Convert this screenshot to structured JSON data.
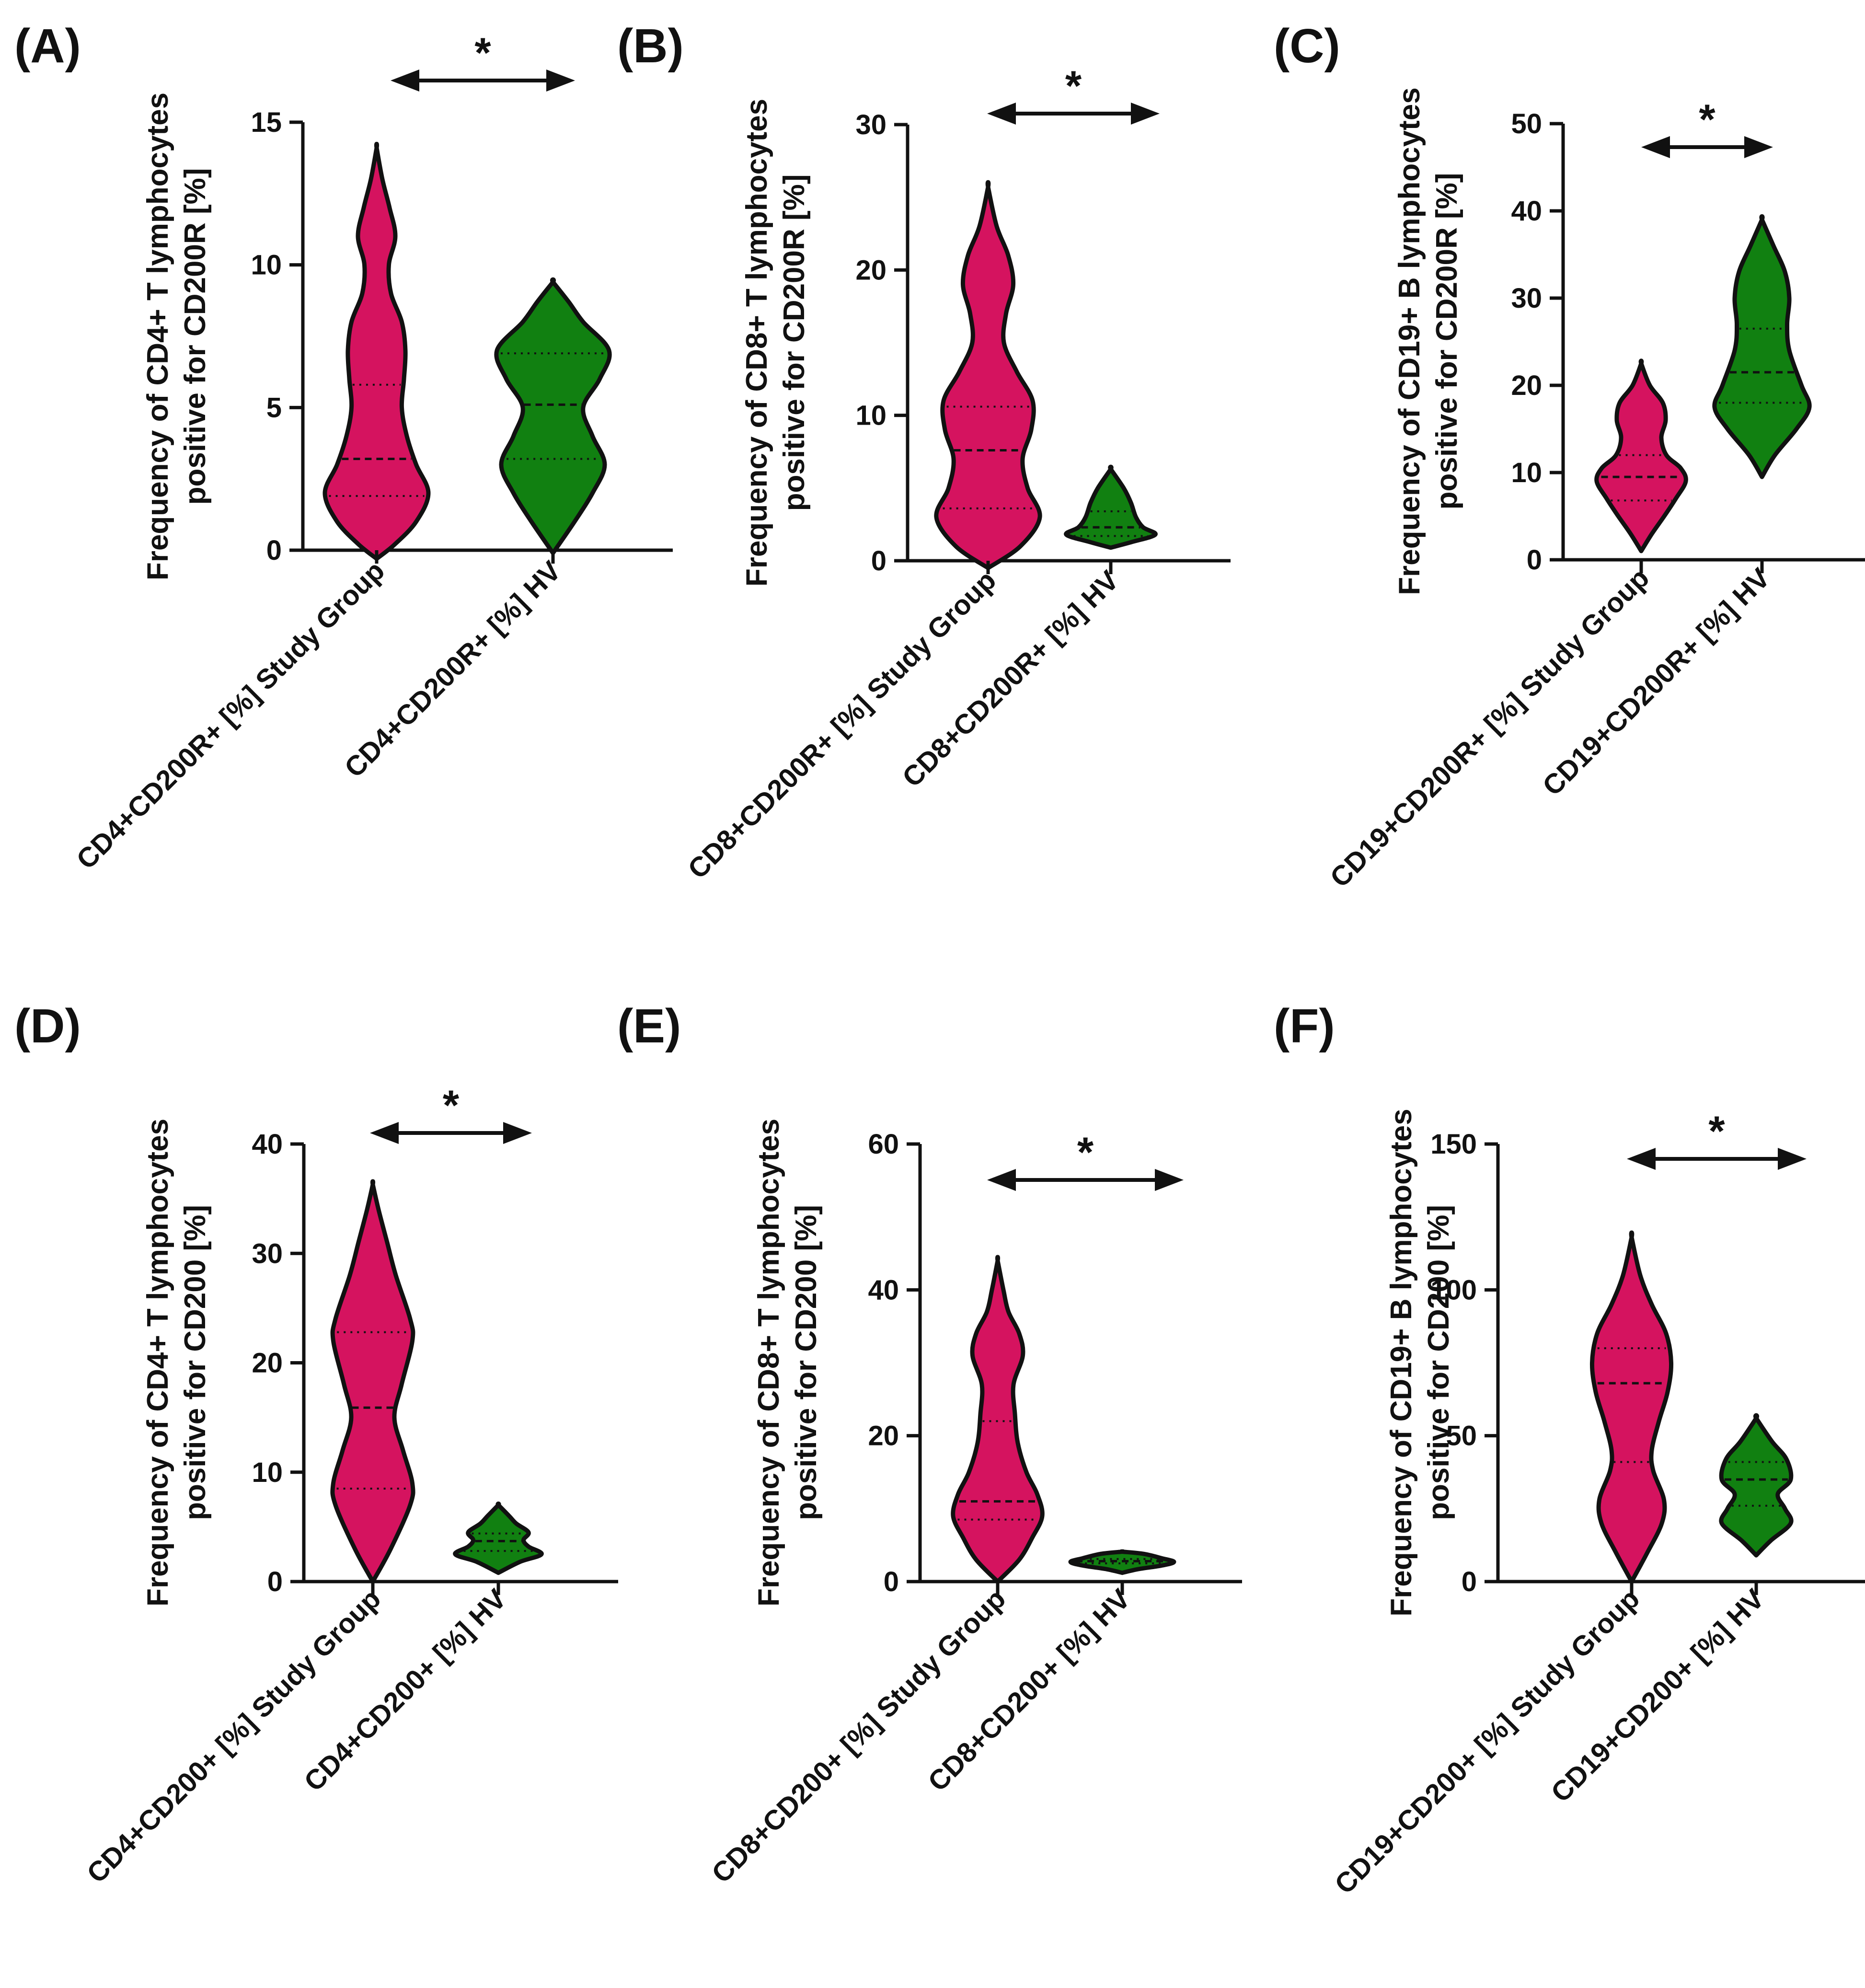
{
  "colors": {
    "study_group": "#d5135f",
    "hv": "#118011",
    "outline": "#111111"
  },
  "chart_data": [
    {
      "panel": "(A)",
      "type": "violin",
      "ylabel_lines": [
        "Frequency of CD4+ T lymphocytes",
        "positive for CD200R [%]"
      ],
      "yticks": [
        0,
        5,
        10,
        15
      ],
      "ylim": [
        0,
        15
      ],
      "significance": "*",
      "groups": [
        {
          "category": "CD4+CD200R+ [%] Study Group",
          "median": 3.2,
          "q1": 1.9,
          "q3": 5.8,
          "profile": [
            [
              -0.3,
              0
            ],
            [
              0.2,
              0.25
            ],
            [
              1.0,
              0.55
            ],
            [
              2.0,
              0.72
            ],
            [
              3.0,
              0.55
            ],
            [
              4.0,
              0.42
            ],
            [
              5.0,
              0.35
            ],
            [
              6.0,
              0.38
            ],
            [
              7.0,
              0.4
            ],
            [
              8.0,
              0.35
            ],
            [
              9.0,
              0.2
            ],
            [
              10.0,
              0.17
            ],
            [
              11.0,
              0.26
            ],
            [
              12.0,
              0.18
            ],
            [
              13.0,
              0.08
            ],
            [
              14.1,
              0
            ]
          ]
        },
        {
          "category": "CD4+CD200R+ [%] HV",
          "median": 5.1,
          "q1": 3.2,
          "q3": 6.9,
          "profile": [
            [
              -0.1,
              0
            ],
            [
              1.0,
              0.3
            ],
            [
              2.0,
              0.55
            ],
            [
              3.0,
              0.72
            ],
            [
              4.0,
              0.55
            ],
            [
              5.0,
              0.42
            ],
            [
              6.0,
              0.65
            ],
            [
              7.0,
              0.78
            ],
            [
              8.0,
              0.42
            ],
            [
              8.7,
              0.22
            ],
            [
              9.4,
              0
            ]
          ]
        }
      ]
    },
    {
      "panel": "(B)",
      "type": "violin",
      "ylabel_lines": [
        "Frequency of CD8+ T lymphocytes",
        "positive for CD200R [%]"
      ],
      "yticks": [
        0,
        10,
        20,
        30
      ],
      "ylim": [
        0,
        30
      ],
      "significance": "*",
      "groups": [
        {
          "category": "CD8+CD200R+ [%] Study Group",
          "median": 7.6,
          "q1": 3.6,
          "q3": 10.6,
          "profile": [
            [
              -0.5,
              0
            ],
            [
              1.0,
              0.45
            ],
            [
              3.0,
              0.72
            ],
            [
              5.0,
              0.55
            ],
            [
              7.0,
              0.48
            ],
            [
              9.0,
              0.6
            ],
            [
              11.0,
              0.62
            ],
            [
              13.0,
              0.4
            ],
            [
              15.0,
              0.22
            ],
            [
              17.0,
              0.25
            ],
            [
              19.0,
              0.35
            ],
            [
              21.0,
              0.28
            ],
            [
              23.0,
              0.12
            ],
            [
              25.7,
              0
            ]
          ]
        },
        {
          "category": "CD8+CD200R+ [%] HV",
          "median": 2.3,
          "q1": 1.7,
          "q3": 3.4,
          "profile": [
            [
              0.9,
              0
            ],
            [
              1.3,
              0.3
            ],
            [
              1.8,
              0.62
            ],
            [
              2.3,
              0.45
            ],
            [
              3.0,
              0.35
            ],
            [
              4.0,
              0.28
            ],
            [
              5.0,
              0.18
            ],
            [
              6.3,
              0
            ]
          ]
        }
      ]
    },
    {
      "panel": "(C)",
      "type": "violin",
      "ylabel_lines": [
        "Frequency of CD19+ B lymphocytes",
        "positive for CD200R [%]"
      ],
      "yticks": [
        0,
        10,
        20,
        30,
        40,
        50
      ],
      "ylim": [
        0,
        50
      ],
      "significance": "*",
      "groups": [
        {
          "category": "CD19+CD200R+ [%] Study Group",
          "median": 9.5,
          "q1": 6.8,
          "q3": 12.0,
          "profile": [
            [
              1.0,
              0
            ],
            [
              3.0,
              0.15
            ],
            [
              5.0,
              0.32
            ],
            [
              7.0,
              0.48
            ],
            [
              9.0,
              0.62
            ],
            [
              10.5,
              0.55
            ],
            [
              12.0,
              0.35
            ],
            [
              14.0,
              0.28
            ],
            [
              16.0,
              0.34
            ],
            [
              18.0,
              0.3
            ],
            [
              20.0,
              0.12
            ],
            [
              22.5,
              0
            ]
          ]
        },
        {
          "category": "CD19+CD200R+ [%] HV",
          "median": 21.5,
          "q1": 18.0,
          "q3": 26.5,
          "profile": [
            [
              9.5,
              0
            ],
            [
              12.0,
              0.18
            ],
            [
              15.0,
              0.48
            ],
            [
              17.5,
              0.66
            ],
            [
              20.0,
              0.55
            ],
            [
              24.0,
              0.38
            ],
            [
              27.0,
              0.35
            ],
            [
              30.0,
              0.38
            ],
            [
              33.0,
              0.32
            ],
            [
              36.0,
              0.16
            ],
            [
              39.0,
              0
            ]
          ]
        }
      ]
    },
    {
      "panel": "(D)",
      "type": "violin",
      "ylabel_lines": [
        "Frequency of CD4+ T lymphocytes",
        "positive for CD200 [%]"
      ],
      "yticks": [
        0,
        10,
        20,
        30,
        40
      ],
      "ylim": [
        0,
        40
      ],
      "significance": "*",
      "groups": [
        {
          "category": "CD4+CD200+ [%] Study Group",
          "median": 15.9,
          "q1": 8.5,
          "q3": 22.8,
          "profile": [
            [
              0.0,
              0
            ],
            [
              3.0,
              0.25
            ],
            [
              7.0,
              0.52
            ],
            [
              9.0,
              0.55
            ],
            [
              12.0,
              0.42
            ],
            [
              15.0,
              0.3
            ],
            [
              18.0,
              0.4
            ],
            [
              22.0,
              0.55
            ],
            [
              24.0,
              0.52
            ],
            [
              28.0,
              0.32
            ],
            [
              31.0,
              0.2
            ],
            [
              34.0,
              0.08
            ],
            [
              36.3,
              0
            ]
          ]
        },
        {
          "category": "CD4+CD200+ [%] HV",
          "median": 3.7,
          "q1": 2.8,
          "q3": 4.4,
          "profile": [
            [
              0.8,
              0
            ],
            [
              1.8,
              0.3
            ],
            [
              2.5,
              0.6
            ],
            [
              3.2,
              0.42
            ],
            [
              3.8,
              0.35
            ],
            [
              4.5,
              0.42
            ],
            [
              5.3,
              0.25
            ],
            [
              6.0,
              0.15
            ],
            [
              7.0,
              0
            ]
          ]
        }
      ]
    },
    {
      "panel": "(E)",
      "type": "violin",
      "ylabel_lines": [
        "Frequency of CD8+ T lymphocytes",
        "positive for CD200 [%]"
      ],
      "yticks": [
        0,
        20,
        40,
        60
      ],
      "ylim": [
        0,
        60
      ],
      "significance": "*",
      "groups": [
        {
          "category": "CD8+CD200+ [%] Study Group",
          "median": 11.0,
          "q1": 8.5,
          "q3": 22.0,
          "profile": [
            [
              0.0,
              0
            ],
            [
              3.0,
              0.3
            ],
            [
              6.0,
              0.48
            ],
            [
              9.0,
              0.62
            ],
            [
              12.0,
              0.55
            ],
            [
              15.0,
              0.4
            ],
            [
              19.0,
              0.28
            ],
            [
              23.0,
              0.24
            ],
            [
              27.0,
              0.22
            ],
            [
              31.0,
              0.35
            ],
            [
              34.0,
              0.3
            ],
            [
              37.0,
              0.15
            ],
            [
              40.0,
              0.08
            ],
            [
              44.0,
              0
            ]
          ]
        },
        {
          "category": "CD8+CD200+ [%] HV",
          "median": 2.8,
          "q1": 2.5,
          "q3": 3.1,
          "profile": [
            [
              1.2,
              0
            ],
            [
              1.7,
              0.22
            ],
            [
              2.2,
              0.55
            ],
            [
              2.7,
              0.72
            ],
            [
              3.2,
              0.55
            ],
            [
              3.8,
              0.3
            ],
            [
              4.1,
              0
            ]
          ]
        }
      ]
    },
    {
      "panel": "(F)",
      "type": "violin",
      "ylabel_lines": [
        "Frequency of CD19+ B lymphocytes",
        "positive for CD200 [%]"
      ],
      "yticks": [
        0,
        50,
        100,
        150
      ],
      "ylim": [
        0,
        150
      ],
      "significance": "*",
      "groups": [
        {
          "category": "CD19+CD200+ [%] Study Group",
          "median": 68.0,
          "q1": 41.0,
          "q3": 80.0,
          "profile": [
            [
              0.0,
              0
            ],
            [
              10.0,
              0.22
            ],
            [
              20.0,
              0.42
            ],
            [
              28.0,
              0.45
            ],
            [
              38.0,
              0.3
            ],
            [
              45.0,
              0.28
            ],
            [
              55.0,
              0.38
            ],
            [
              65.0,
              0.5
            ],
            [
              75.0,
              0.55
            ],
            [
              85.0,
              0.48
            ],
            [
              95.0,
              0.28
            ],
            [
              105.0,
              0.12
            ],
            [
              118.0,
              0
            ]
          ]
        },
        {
          "category": "CD19+CD200+ [%] HV",
          "median": 35.0,
          "q1": 26.0,
          "q3": 41.0,
          "profile": [
            [
              9.0,
              0
            ],
            [
              14.0,
              0.2
            ],
            [
              20.0,
              0.48
            ],
            [
              25.0,
              0.4
            ],
            [
              30.0,
              0.3
            ],
            [
              35.0,
              0.48
            ],
            [
              42.0,
              0.42
            ],
            [
              48.0,
              0.22
            ],
            [
              56.0,
              0
            ]
          ]
        }
      ]
    }
  ]
}
